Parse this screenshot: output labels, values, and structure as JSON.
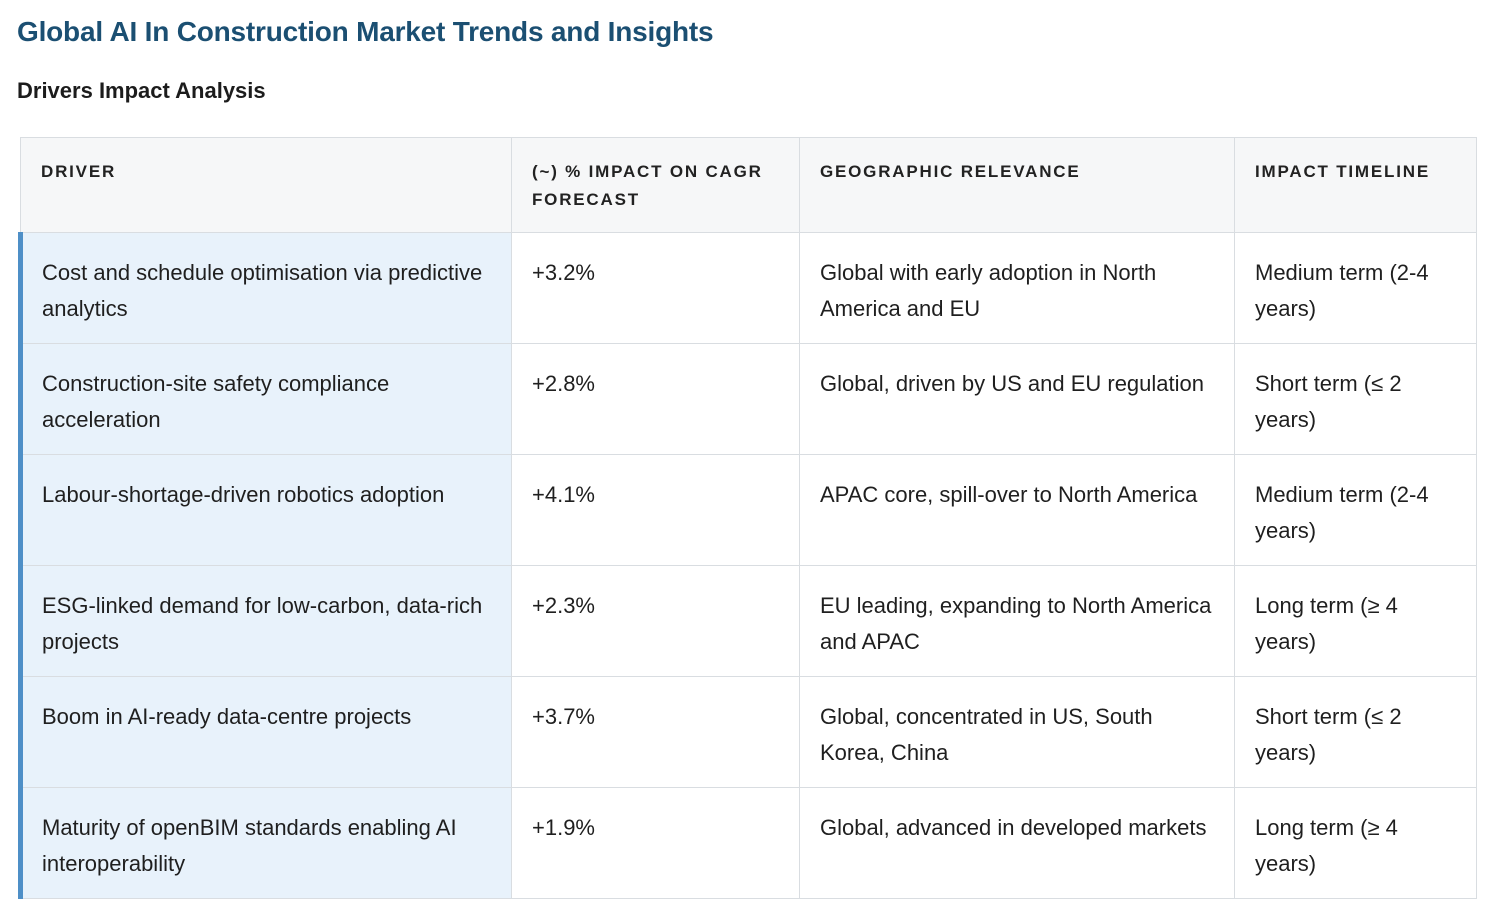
{
  "page": {
    "title": "Global AI In Construction Market Trends and Insights",
    "section_title": "Drivers Impact Analysis"
  },
  "table": {
    "headers": {
      "driver": "DRIVER",
      "impact": "(~) % IMPACT ON CAGR FORECAST",
      "geo": "GEOGRAPHIC RELEVANCE",
      "timeline": "IMPACT TIMELINE"
    },
    "rows": [
      {
        "driver": "Cost and schedule optimisation via predictive analytics",
        "impact": "+3.2%",
        "geo": "Global with early adoption in North America and EU",
        "timeline": "Medium term (2-4 years)"
      },
      {
        "driver": "Construction-site safety compliance acceleration",
        "impact": "+2.8%",
        "geo": "Global, driven by US and EU regulation",
        "timeline": "Short term (≤ 2 years)"
      },
      {
        "driver": "Labour-shortage-driven robotics adoption",
        "impact": "+4.1%",
        "geo": "APAC core, spill-over to North America",
        "timeline": "Medium term (2-4 years)"
      },
      {
        "driver": "ESG-linked demand for low-carbon, data-rich projects",
        "impact": "+2.3%",
        "geo": "EU leading, expanding to North America and APAC",
        "timeline": "Long term (≥ 4 years)"
      },
      {
        "driver": "Boom in AI-ready data-centre projects",
        "impact": "+3.7%",
        "geo": "Global, concentrated in US, South Korea, China",
        "timeline": "Short term (≤ 2 years)"
      },
      {
        "driver": "Maturity of openBIM standards enabling AI interoperability",
        "impact": "+1.9%",
        "geo": "Global, advanced in developed markets",
        "timeline": "Long term (≥ 4 years)"
      }
    ]
  },
  "colors": {
    "title": "#1b4f72",
    "header_bg": "#f6f7f8",
    "driver_bg": "#e8f2fb",
    "driver_accent": "#4e8fc7",
    "border": "#d9dde1"
  }
}
